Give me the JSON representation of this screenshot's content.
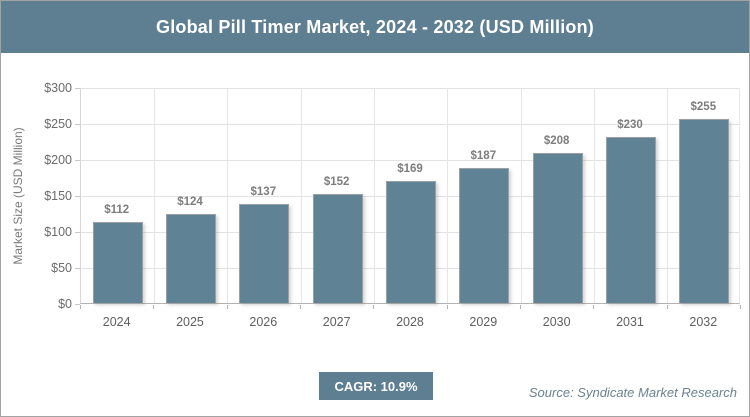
{
  "header": {
    "title": "Global Pill Timer Market, 2024 - 2032 (USD Million)"
  },
  "chart_data": {
    "type": "bar",
    "title": "Global Pill Timer Market, 2024 - 2032 (USD Million)",
    "categories": [
      "2024",
      "2025",
      "2026",
      "2027",
      "2028",
      "2029",
      "2030",
      "2031",
      "2032"
    ],
    "values": [
      112,
      124,
      137,
      152,
      169,
      187,
      208,
      230,
      255
    ],
    "value_labels": [
      "$112",
      "$124",
      "$137",
      "$152",
      "$169",
      "$187",
      "$208",
      "$230",
      "$255"
    ],
    "xlabel": "",
    "ylabel": "Market Size (USD Million)",
    "ylim": [
      0,
      300
    ],
    "ytick_step": 50,
    "ytick_labels": [
      "$0",
      "$50",
      "$100",
      "$150",
      "$200",
      "$250",
      "$300"
    ],
    "grid": true,
    "legend": "none",
    "bar_color": "#5f8294",
    "bar_border_color": "#9aa0a4",
    "value_label_color": "#7d7d7d"
  },
  "footer": {
    "cagr_label": "CAGR: 10.9%",
    "source": "Source: Syndicate Market Research"
  },
  "colors": {
    "accent": "#5e7f91",
    "header_bg": "#5e7f91",
    "header_text": "#ffffff",
    "grid_color": "#e2e2e2"
  }
}
